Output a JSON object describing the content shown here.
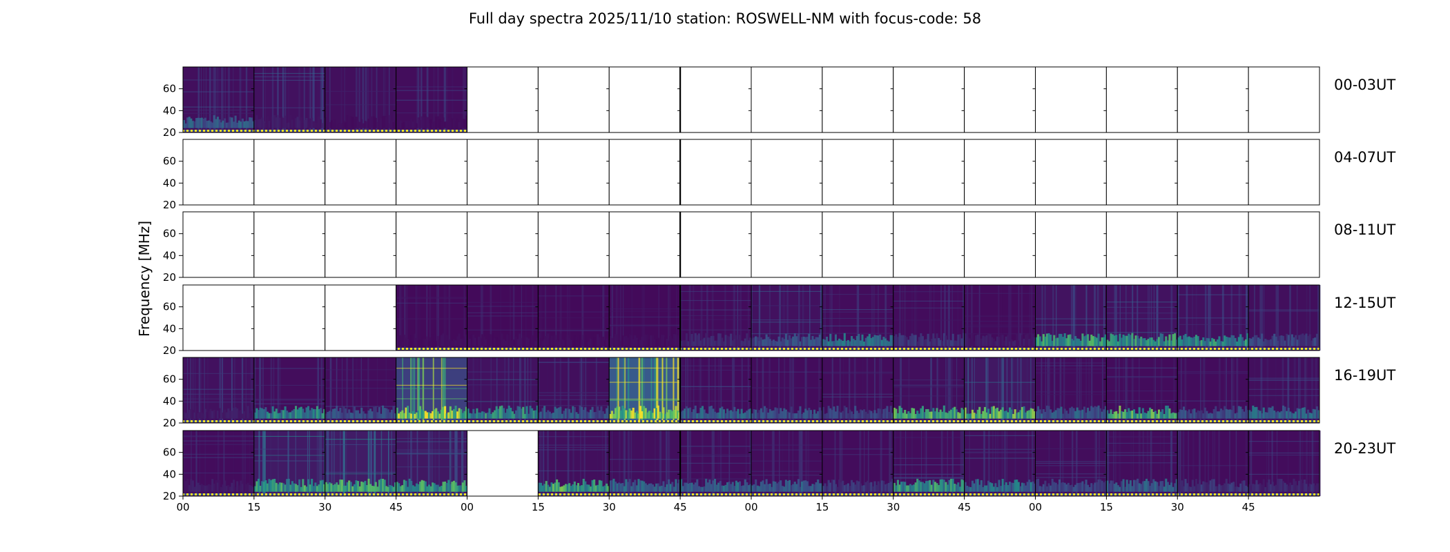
{
  "chart_data": {
    "type": "heatmap",
    "title": "Full day spectra 2025/11/10 station: ROSWELL-NM with focus-code: 58",
    "ylabel": "Frequency [MHz]",
    "xlabel": "",
    "ylim": [
      20,
      80
    ],
    "yticks": [
      "20",
      "40",
      "60"
    ],
    "xticks": [
      "00",
      "15",
      "30",
      "45",
      "00",
      "15",
      "30",
      "45",
      "00",
      "15",
      "30",
      "45",
      "00",
      "15",
      "30",
      "45"
    ],
    "grid": false,
    "colormap": [
      "#440154",
      "#3b528b",
      "#21918c",
      "#5ec962",
      "#fde725"
    ],
    "marker_colors": [
      "#fde725",
      "#3b528b"
    ],
    "rows": [
      {
        "label": "00-03UT",
        "panels": [
          {
            "data": true,
            "level": 0.12,
            "band": 0.35,
            "bandPos": "low"
          },
          {
            "data": true,
            "level": 0.14,
            "band": 0.1,
            "bandPos": "low"
          },
          {
            "data": true,
            "level": 0.12,
            "band": 0.05,
            "bandPos": "low"
          },
          {
            "data": true,
            "level": 0.11,
            "band": 0.05,
            "bandPos": "low"
          },
          {
            "data": false
          },
          {
            "data": false
          },
          {
            "data": false
          },
          {
            "data": false
          },
          {
            "data": false
          },
          {
            "data": false
          },
          {
            "data": false
          },
          {
            "data": false
          },
          {
            "data": false
          },
          {
            "data": false
          },
          {
            "data": false
          },
          {
            "data": false
          }
        ]
      },
      {
        "label": "04-07UT",
        "panels": [
          {
            "data": false
          },
          {
            "data": false
          },
          {
            "data": false
          },
          {
            "data": false
          },
          {
            "data": false
          },
          {
            "data": false
          },
          {
            "data": false
          },
          {
            "data": false
          },
          {
            "data": false
          },
          {
            "data": false
          },
          {
            "data": false
          },
          {
            "data": false
          },
          {
            "data": false
          },
          {
            "data": false
          },
          {
            "data": false
          },
          {
            "data": false
          }
        ]
      },
      {
        "label": "08-11UT",
        "panels": [
          {
            "data": false
          },
          {
            "data": false
          },
          {
            "data": false
          },
          {
            "data": false
          },
          {
            "data": false
          },
          {
            "data": false
          },
          {
            "data": false
          },
          {
            "data": false
          },
          {
            "data": false
          },
          {
            "data": false
          },
          {
            "data": false
          },
          {
            "data": false
          },
          {
            "data": false
          },
          {
            "data": false
          },
          {
            "data": false
          },
          {
            "data": false
          }
        ]
      },
      {
        "label": "12-15UT",
        "panels": [
          {
            "data": false
          },
          {
            "data": false
          },
          {
            "data": false
          },
          {
            "data": true,
            "level": 0.08,
            "band": 0.05,
            "bandPos": "low"
          },
          {
            "data": true,
            "level": 0.08,
            "band": 0.05,
            "bandPos": "low"
          },
          {
            "data": true,
            "level": 0.08,
            "band": 0.05,
            "bandPos": "low"
          },
          {
            "data": true,
            "level": 0.08,
            "band": 0.05,
            "bandPos": "low"
          },
          {
            "data": true,
            "level": 0.1,
            "band": 0.15,
            "bandPos": "low"
          },
          {
            "data": true,
            "level": 0.14,
            "band": 0.3,
            "bandPos": "low"
          },
          {
            "data": true,
            "level": 0.11,
            "band": 0.45,
            "bandPos": "low"
          },
          {
            "data": true,
            "level": 0.1,
            "band": 0.2,
            "bandPos": "low"
          },
          {
            "data": true,
            "level": 0.09,
            "band": 0.1,
            "bandPos": "low"
          },
          {
            "data": true,
            "level": 0.16,
            "band": 0.7,
            "bandPos": "low"
          },
          {
            "data": true,
            "level": 0.15,
            "band": 0.65,
            "bandPos": "low"
          },
          {
            "data": true,
            "level": 0.14,
            "band": 0.6,
            "bandPos": "low"
          },
          {
            "data": true,
            "level": 0.12,
            "band": 0.25,
            "bandPos": "low"
          }
        ]
      },
      {
        "label": "16-19UT",
        "panels": [
          {
            "data": true,
            "level": 0.14,
            "band": 0.1,
            "bandPos": "low"
          },
          {
            "data": true,
            "level": 0.11,
            "band": 0.55,
            "bandPos": "low"
          },
          {
            "data": true,
            "level": 0.11,
            "band": 0.3,
            "bandPos": "low"
          },
          {
            "data": true,
            "level": 0.55,
            "band": 0.95,
            "bandPos": "low"
          },
          {
            "data": true,
            "level": 0.15,
            "band": 0.6,
            "bandPos": "low"
          },
          {
            "data": true,
            "level": 0.12,
            "band": 0.35,
            "bandPos": "low"
          },
          {
            "data": true,
            "level": 0.8,
            "band": 1.0,
            "bandPos": "low"
          },
          {
            "data": true,
            "level": 0.1,
            "band": 0.4,
            "bandPos": "low"
          },
          {
            "data": true,
            "level": 0.1,
            "band": 0.3,
            "bandPos": "low"
          },
          {
            "data": true,
            "level": 0.11,
            "band": 0.25,
            "bandPos": "low"
          },
          {
            "data": true,
            "level": 0.12,
            "band": 0.75,
            "bandPos": "low"
          },
          {
            "data": true,
            "level": 0.2,
            "band": 0.8,
            "bandPos": "low"
          },
          {
            "data": true,
            "level": 0.1,
            "band": 0.35,
            "bandPos": "low"
          },
          {
            "data": true,
            "level": 0.1,
            "band": 0.75,
            "bandPos": "low"
          },
          {
            "data": true,
            "level": 0.1,
            "band": 0.3,
            "bandPos": "low"
          },
          {
            "data": true,
            "level": 0.12,
            "band": 0.4,
            "bandPos": "low"
          }
        ]
      },
      {
        "label": "20-23UT",
        "panels": [
          {
            "data": true,
            "level": 0.1,
            "band": 0.1,
            "bandPos": "low"
          },
          {
            "data": true,
            "level": 0.22,
            "band": 0.7,
            "bandPos": "low"
          },
          {
            "data": true,
            "level": 0.24,
            "band": 0.75,
            "bandPos": "low"
          },
          {
            "data": true,
            "level": 0.2,
            "band": 0.7,
            "bandPos": "low"
          },
          {
            "data": false
          },
          {
            "data": true,
            "level": 0.12,
            "band": 0.75,
            "bandPos": "low"
          },
          {
            "data": true,
            "level": 0.12,
            "band": 0.4,
            "bandPos": "low"
          },
          {
            "data": true,
            "level": 0.11,
            "band": 0.4,
            "bandPos": "low"
          },
          {
            "data": true,
            "level": 0.11,
            "band": 0.35,
            "bandPos": "low"
          },
          {
            "data": true,
            "level": 0.1,
            "band": 0.2,
            "bandPos": "low"
          },
          {
            "data": true,
            "level": 0.11,
            "band": 0.65,
            "bandPos": "low"
          },
          {
            "data": true,
            "level": 0.12,
            "band": 0.45,
            "bandPos": "low"
          },
          {
            "data": true,
            "level": 0.11,
            "band": 0.25,
            "bandPos": "low"
          },
          {
            "data": true,
            "level": 0.11,
            "band": 0.35,
            "bandPos": "low"
          },
          {
            "data": true,
            "level": 0.1,
            "band": 0.2,
            "bandPos": "low"
          },
          {
            "data": true,
            "level": 0.1,
            "band": 0.15,
            "bandPos": "low"
          }
        ]
      }
    ]
  }
}
